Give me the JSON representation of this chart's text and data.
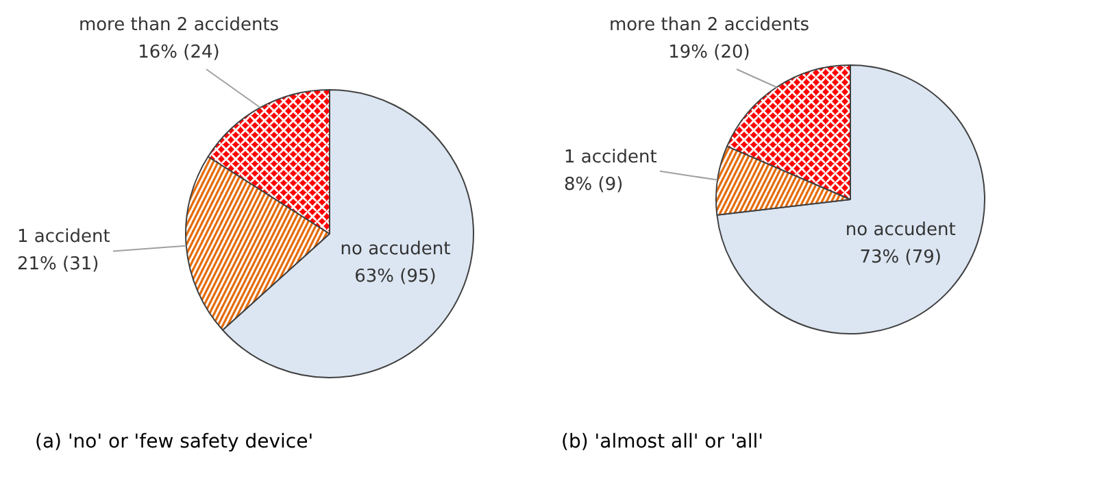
{
  "chart_data": [
    {
      "type": "pie",
      "title": "(a) 'no' or 'few safety device'",
      "categories": [
        "no accudent",
        "1 accident",
        "more than 2 accidents"
      ],
      "values": [
        95,
        31,
        24
      ],
      "value_labels": [
        "63% (95)",
        "21% (31)",
        "16% (24)"
      ],
      "colors": [
        "#dce6f2",
        "#e46c0a",
        "#ff0000"
      ]
    },
    {
      "type": "pie",
      "title": "(b) 'almost all' or 'all'",
      "categories": [
        "no accudent",
        "1 accident",
        "more than 2 accidents"
      ],
      "values": [
        79,
        9,
        20
      ],
      "value_labels": [
        "73% (79)",
        "8% (9)",
        "19% (20)"
      ],
      "colors": [
        "#dce6f2",
        "#e46c0a",
        "#ff0000"
      ]
    }
  ]
}
